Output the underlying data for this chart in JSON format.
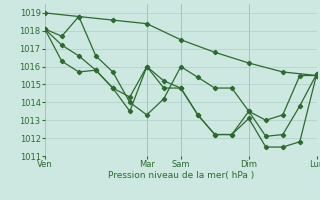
{
  "background_color": "#cce8e0",
  "grid_color": "#b0cfc8",
  "line_color": "#2d6a2d",
  "marker_color": "#2d6a2d",
  "xlabel": "Pression niveau de la mer( hPa )",
  "ylim": [
    1011,
    1019.5
  ],
  "yticks": [
    1011,
    1012,
    1013,
    1014,
    1015,
    1016,
    1017,
    1018,
    1019
  ],
  "xtick_labels": [
    "Ven",
    "Mar",
    "Sam",
    "Dim",
    "Lun"
  ],
  "xtick_positions": [
    0,
    36,
    48,
    72,
    96
  ],
  "series1_x": [
    0,
    12,
    24,
    36,
    48,
    60,
    72,
    84,
    96
  ],
  "series1_y": [
    1019.0,
    1018.8,
    1018.6,
    1018.4,
    1017.5,
    1016.8,
    1016.2,
    1015.7,
    1015.5
  ],
  "series2_x": [
    0,
    6,
    12,
    18,
    24,
    30,
    36,
    42,
    48,
    54,
    60,
    66,
    72,
    78,
    84,
    90,
    96
  ],
  "series2_y": [
    1018.1,
    1017.7,
    1018.8,
    1016.6,
    1015.7,
    1014.0,
    1013.3,
    1014.2,
    1016.0,
    1015.4,
    1014.8,
    1014.8,
    1013.5,
    1013.0,
    1013.3,
    1015.5,
    1015.5
  ],
  "series3_x": [
    0,
    6,
    12,
    18,
    24,
    30,
    36,
    42,
    48,
    54,
    60,
    66,
    72,
    78,
    84,
    90,
    96
  ],
  "series3_y": [
    1018.1,
    1017.2,
    1016.6,
    1015.8,
    1014.8,
    1013.5,
    1016.0,
    1015.2,
    1014.8,
    1013.3,
    1012.2,
    1012.2,
    1013.5,
    1012.1,
    1012.2,
    1013.8,
    1015.6
  ],
  "series4_x": [
    0,
    6,
    12,
    18,
    24,
    30,
    36,
    42,
    48,
    54,
    60,
    66,
    72,
    78,
    84,
    90,
    96
  ],
  "series4_y": [
    1018.1,
    1016.3,
    1015.7,
    1015.8,
    1014.8,
    1014.3,
    1016.0,
    1014.8,
    1014.8,
    1013.3,
    1012.2,
    1012.2,
    1013.1,
    1011.5,
    1011.5,
    1011.8,
    1015.6
  ]
}
